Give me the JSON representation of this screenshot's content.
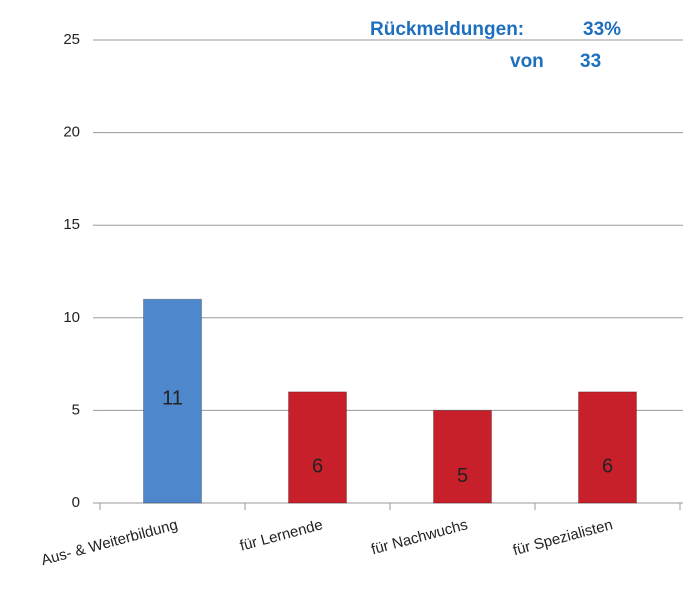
{
  "chart_data": {
    "type": "bar",
    "annotations": [
      "Rückmeldungen:",
      "33%",
      "von",
      "33"
    ],
    "categories": [
      "Aus- & Weiterbildung",
      "für Lernende",
      "für Nachwuchs",
      "für Spezialisten"
    ],
    "values": [
      11,
      6,
      5,
      6
    ],
    "colors": [
      "#4f87cc",
      "#c8202a",
      "#c8202a",
      "#c8202a"
    ],
    "ylim": [
      0,
      25
    ],
    "yticks": [
      0,
      5,
      10,
      15,
      20,
      25
    ],
    "grid": true
  }
}
